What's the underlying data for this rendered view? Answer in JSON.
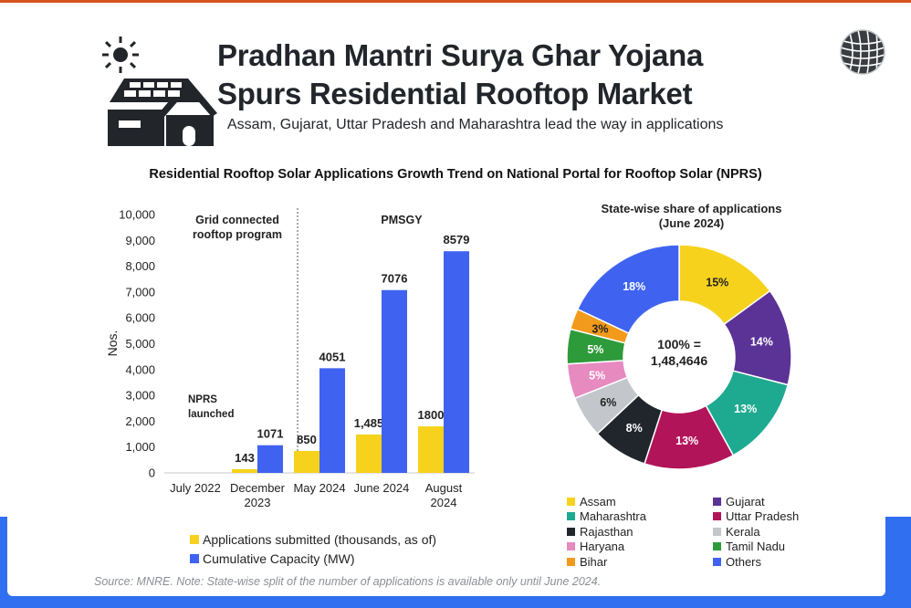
{
  "header": {
    "title_line1": "Pradhan Mantri Surya Ghar Yojana",
    "title_line2": "Spurs Residential Rooftop Market",
    "subtitle": "Assam, Gujarat, Uttar Pradesh and Maharashtra lead the way in applications",
    "logo_icon": "solar-house-icon",
    "brand_icon": "globe-icon"
  },
  "chart_title": "Residential Rooftop Solar Applications Growth Trend on National Portal for Rooftop Solar (NPRS)",
  "source_note": "Source: MNRE. Note: State-wise split of the number of applications is available only until June 2024.",
  "colors": {
    "yellow": "#f6d21c",
    "blue": "#3f63f0",
    "band": "#2f6ff0"
  },
  "chart_data": [
    {
      "type": "bar",
      "ylabel": "Nos.",
      "ylim": [
        0,
        10000
      ],
      "yticks": [
        "0",
        "1,000",
        "2,000",
        "3,000",
        "4,000",
        "5,000",
        "6,000",
        "7,000",
        "8,000",
        "9,000",
        "10,000"
      ],
      "categories": [
        [
          "July 2022"
        ],
        [
          "December",
          "2023"
        ],
        [
          "May 2024"
        ],
        [
          "June 2024"
        ],
        [
          "August",
          "2024"
        ]
      ],
      "series": [
        {
          "name": "Applications submitted (thousands, as of)",
          "color": "#f6d21c",
          "values": [
            0,
            143,
            850,
            1485,
            1800
          ],
          "labels": [
            "",
            "143",
            "850",
            "1,485",
            "1800"
          ]
        },
        {
          "name": "Cumulative Capacity (MW)",
          "color": "#3f63f0",
          "values": [
            0,
            1071,
            4051,
            7076,
            8579
          ],
          "labels": [
            "",
            "1071",
            "4051",
            "7076",
            "8579"
          ]
        }
      ],
      "annotations": {
        "left_phase": [
          "Grid connected",
          "rooftop program"
        ],
        "right_phase": "PMSGY",
        "event": [
          "NPRS",
          "launched"
        ]
      }
    },
    {
      "type": "pie",
      "title_line1": "State-wise share of applications",
      "title_line2": "(June 2024)",
      "center_line1": "100% =",
      "center_line2": "1,48,4646",
      "slices": [
        {
          "name": "Assam",
          "value": 15,
          "label": "15%",
          "color": "#f6d21c"
        },
        {
          "name": "Gujarat",
          "value": 14,
          "label": "14%",
          "color": "#5b3296"
        },
        {
          "name": "Maharashtra",
          "value": 13,
          "label": "13%",
          "color": "#1eaa90"
        },
        {
          "name": "Uttar Pradesh",
          "value": 13,
          "label": "13%",
          "color": "#b2145a"
        },
        {
          "name": "Rajasthan",
          "value": 8,
          "label": "8%",
          "color": "#21262c"
        },
        {
          "name": "Kerala",
          "value": 6,
          "label": "6%",
          "color": "#c3c6ca"
        },
        {
          "name": "Haryana",
          "value": 5,
          "label": "5%",
          "color": "#e68ac0"
        },
        {
          "name": "Tamil Nadu",
          "value": 5,
          "label": "5%",
          "color": "#2e9b3a"
        },
        {
          "name": "Bihar",
          "value": 3,
          "label": "3%",
          "color": "#f29a1b"
        },
        {
          "name": "Others",
          "value": 18,
          "label": "18%",
          "color": "#3f63f0"
        }
      ]
    }
  ]
}
